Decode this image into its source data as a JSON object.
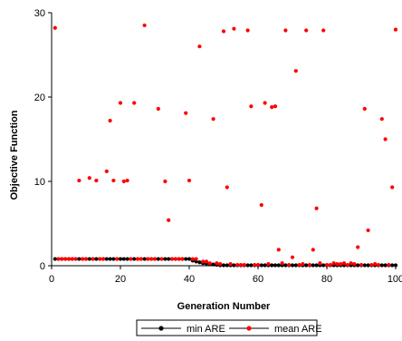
{
  "chart_data": {
    "type": "scatter",
    "xlabel": "Generation Number",
    "ylabel": "Objective Function",
    "xlim": [
      0,
      100
    ],
    "ylim": [
      0,
      30
    ],
    "xticks": [
      "0",
      "20",
      "40",
      "60",
      "80",
      "100"
    ],
    "yticks": [
      "0",
      "10",
      "20",
      "30"
    ],
    "grid": false,
    "legend_position": "bottom",
    "series": [
      {
        "name": "min ARE",
        "color": "#000000",
        "x": [
          1,
          2,
          3,
          4,
          5,
          6,
          7,
          8,
          9,
          10,
          11,
          12,
          13,
          14,
          15,
          16,
          17,
          18,
          19,
          20,
          21,
          22,
          23,
          24,
          25,
          26,
          27,
          28,
          29,
          30,
          31,
          32,
          33,
          34,
          35,
          36,
          37,
          38,
          39,
          40,
          41,
          42,
          43,
          44,
          45,
          46,
          47,
          48,
          49,
          50,
          51,
          52,
          53,
          54,
          55,
          56,
          57,
          58,
          59,
          60,
          61,
          62,
          63,
          64,
          65,
          66,
          67,
          68,
          69,
          70,
          71,
          72,
          73,
          74,
          75,
          76,
          77,
          78,
          79,
          80,
          81,
          82,
          83,
          84,
          85,
          86,
          87,
          88,
          89,
          90,
          91,
          92,
          93,
          94,
          95,
          96,
          97,
          98,
          99,
          100
        ],
        "y": [
          0.8,
          0.8,
          0.8,
          0.8,
          0.8,
          0.8,
          0.8,
          0.8,
          0.8,
          0.8,
          0.8,
          0.8,
          0.8,
          0.8,
          0.8,
          0.8,
          0.8,
          0.8,
          0.8,
          0.8,
          0.8,
          0.8,
          0.8,
          0.8,
          0.8,
          0.8,
          0.8,
          0.8,
          0.8,
          0.8,
          0.8,
          0.8,
          0.8,
          0.8,
          0.8,
          0.8,
          0.8,
          0.8,
          0.8,
          0.8,
          0.6,
          0.5,
          0.4,
          0.3,
          0.25,
          0.2,
          0.15,
          0.1,
          0.05,
          0.05,
          0.05,
          0.05,
          0.05,
          0.05,
          0.05,
          0.05,
          0.05,
          0.05,
          0.05,
          0.05,
          0.05,
          0.05,
          0.05,
          0.05,
          0.05,
          0.05,
          0.05,
          0.05,
          0.05,
          0.05,
          0.05,
          0.05,
          0.05,
          0.05,
          0.05,
          0.05,
          0.05,
          0.05,
          0.05,
          0.05,
          0.05,
          0.05,
          0.05,
          0.05,
          0.05,
          0.05,
          0.05,
          0.05,
          0.05,
          0.05,
          0.05,
          0.05,
          0.05,
          0.05,
          0.05,
          0.05,
          0.05,
          0.05,
          0.05,
          0.05
        ]
      },
      {
        "name": "mean ARE",
        "color": "#ff0000",
        "x": [
          1,
          2,
          3,
          4,
          5,
          6,
          7,
          8,
          9,
          10,
          11,
          12,
          13,
          14,
          15,
          16,
          17,
          18,
          19,
          20,
          21,
          22,
          23,
          24,
          25,
          26,
          27,
          28,
          29,
          30,
          31,
          32,
          33,
          34,
          35,
          36,
          37,
          38,
          39,
          40,
          41,
          42,
          43,
          44,
          45,
          46,
          47,
          48,
          49,
          50,
          51,
          52,
          53,
          54,
          55,
          56,
          57,
          58,
          59,
          60,
          61,
          62,
          63,
          64,
          65,
          66,
          67,
          68,
          69,
          70,
          71,
          72,
          73,
          74,
          75,
          76,
          77,
          78,
          79,
          80,
          81,
          82,
          83,
          84,
          85,
          86,
          87,
          88,
          89,
          90,
          91,
          92,
          93,
          94,
          95,
          96,
          97,
          98,
          99,
          100
        ],
        "y": [
          28.2,
          0.8,
          0.8,
          0.8,
          0.8,
          0.8,
          0.8,
          10.1,
          0.8,
          0.8,
          10.4,
          0.8,
          10.1,
          0.8,
          0.8,
          11.2,
          17.2,
          10.1,
          0.8,
          19.3,
          10.0,
          10.1,
          0.8,
          19.3,
          0.8,
          0.8,
          28.5,
          0.8,
          0.8,
          0.8,
          18.6,
          0.8,
          10.0,
          5.4,
          0.8,
          0.8,
          0.8,
          0.8,
          18.1,
          10.1,
          0.8,
          0.8,
          26.0,
          0.5,
          0.5,
          0.3,
          17.4,
          0.3,
          0.2,
          27.8,
          9.3,
          0.2,
          28.1,
          0.1,
          0.1,
          0.1,
          27.9,
          18.9,
          0.1,
          0.1,
          7.2,
          19.3,
          0.2,
          18.8,
          18.9,
          1.9,
          0.3,
          27.9,
          0.1,
          1.0,
          23.1,
          0.1,
          0.2,
          27.9,
          0.1,
          1.9,
          6.8,
          0.3,
          27.9,
          0.1,
          0.1,
          0.3,
          0.2,
          0.2,
          0.3,
          0.1,
          0.3,
          0.2,
          2.2,
          0.1,
          18.6,
          4.2,
          0.1,
          0.2,
          0.1,
          17.4,
          15.0,
          0.1,
          9.3,
          28.0
        ]
      }
    ]
  }
}
